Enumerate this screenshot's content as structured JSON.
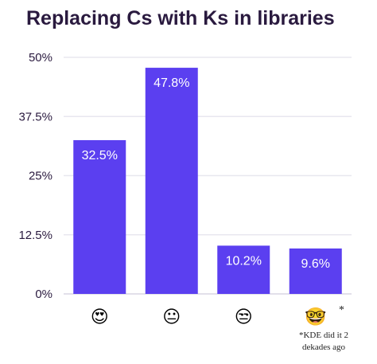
{
  "chart_data": {
    "type": "bar",
    "title": "Replacing Cs with Ks in libraries",
    "categories": [
      "😍",
      "😐",
      "😒",
      "🤓"
    ],
    "values": [
      32.5,
      47.8,
      10.2,
      9.6
    ],
    "value_labels": [
      "32.5%",
      "47.8%",
      "10.2%",
      "9.6%"
    ],
    "yticks": [
      0,
      12.5,
      25,
      37.5,
      50
    ],
    "ytick_labels": [
      "0%",
      "12.5%",
      "25%",
      "37.5%",
      "50%"
    ],
    "ylim": [
      0,
      50
    ],
    "xlabel": "",
    "ylabel": "",
    "grid": true,
    "bar_color": "#5b3ff0",
    "annotation": {
      "star": "*",
      "lines": [
        "*KDE did it 2",
        "dekades ago"
      ]
    }
  }
}
